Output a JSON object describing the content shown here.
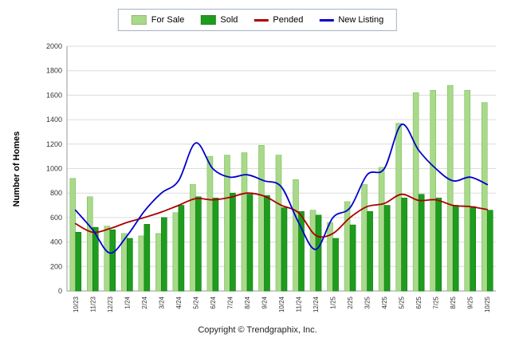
{
  "page": {
    "background": "#ffffff"
  },
  "footer": {
    "copyright": "Copyright © Trendgraphix, Inc."
  },
  "chart_data": {
    "type": "combo",
    "subtype": "grouped-bars-with-line-overlays",
    "title": "",
    "xlabel": "",
    "ylabel": "Number of Homes",
    "ylim": [
      0,
      2000
    ],
    "ytick_step": 200,
    "grid": true,
    "legend_position": "top-center",
    "categories": [
      "10/23",
      "11/23",
      "12/23",
      "1/24",
      "2/24",
      "3/24",
      "4/24",
      "5/24",
      "6/24",
      "7/24",
      "8/24",
      "9/24",
      "10/24",
      "11/24",
      "12/24",
      "1/25",
      "2/25",
      "3/25",
      "4/25",
      "5/25",
      "6/25",
      "7/25",
      "8/25",
      "9/25",
      "10/25"
    ],
    "series": [
      {
        "name": "For Sale",
        "type": "bar",
        "color": "#a9d98a",
        "edge": "#7cbf58",
        "values": [
          920,
          770,
          530,
          470,
          450,
          470,
          640,
          870,
          1100,
          1110,
          1130,
          1190,
          1110,
          910,
          660,
          560,
          730,
          870,
          1010,
          1370,
          1620,
          1640,
          1680,
          1640,
          1540
        ]
      },
      {
        "name": "Sold",
        "type": "bar",
        "color": "#1e9c1e",
        "edge": "#0f7a0f",
        "values": [
          480,
          520,
          500,
          430,
          545,
          600,
          700,
          770,
          760,
          800,
          790,
          780,
          680,
          650,
          620,
          430,
          540,
          650,
          700,
          760,
          790,
          760,
          700,
          690,
          660
        ]
      },
      {
        "name": "Pended",
        "type": "line",
        "color": "#aa0000",
        "values": [
          550,
          480,
          510,
          560,
          600,
          645,
          700,
          755,
          745,
          765,
          800,
          775,
          700,
          640,
          455,
          470,
          600,
          690,
          715,
          790,
          740,
          745,
          700,
          690,
          665
        ]
      },
      {
        "name": "New Listing",
        "type": "line",
        "color": "#0000cc",
        "values": [
          660,
          500,
          310,
          450,
          650,
          800,
          900,
          1210,
          1000,
          930,
          950,
          900,
          850,
          560,
          340,
          600,
          680,
          950,
          1000,
          1360,
          1150,
          1000,
          900,
          930,
          870
        ]
      }
    ]
  }
}
